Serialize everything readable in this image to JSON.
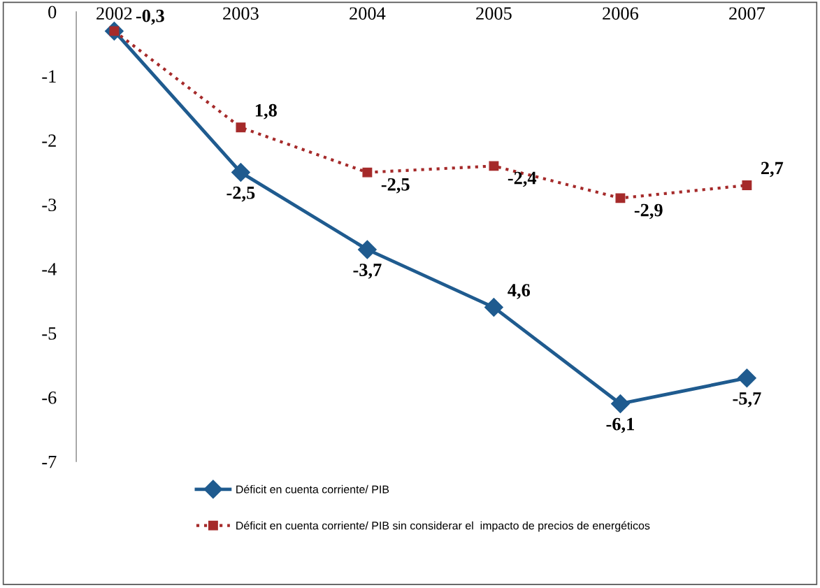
{
  "chart_data": {
    "type": "line",
    "categories": [
      "2002",
      "2003",
      "2004",
      "2005",
      "2006",
      "2007"
    ],
    "series": [
      {
        "name": "Déficit en cuenta corriente/ PIB",
        "color": "#1f5b8f",
        "marker": "diamond",
        "line_style": "solid",
        "values": [
          -0.3,
          -2.5,
          -3.7,
          -4.6,
          -6.1,
          -5.7
        ],
        "value_labels": [
          null,
          "-2,5",
          "-3,7",
          null,
          "-6,1",
          "-5,7"
        ]
      },
      {
        "name": "Déficit en cuenta corriente/ PIB sin considerar el  impacto de precios de energéticos",
        "color": "#a52a2a",
        "marker": "square",
        "line_style": "dotted",
        "values": [
          -0.3,
          -1.8,
          -2.5,
          -2.4,
          -2.9,
          -2.7
        ],
        "value_labels": [
          "-0,3",
          null,
          "-2,5",
          "-2,4",
          "-2,9",
          null
        ]
      }
    ],
    "annotations": [
      {
        "text": "4,6",
        "x": "2005",
        "y": -4.6
      },
      {
        "text": "1,8",
        "x": "2003",
        "y": -1.8
      },
      {
        "text": "2,7",
        "x": "2007",
        "y": -2.7
      }
    ],
    "ylim": [
      -7,
      0
    ],
    "yticks": [
      0,
      {
        "value": -1,
        "label": "-1"
      },
      {
        "value": -2,
        "label": "-2"
      },
      {
        "value": -3,
        "label": "-3"
      },
      {
        "value": -4,
        "label": "-4"
      },
      {
        "value": -5,
        "label": "-5"
      },
      {
        "value": -6,
        "label": "-6"
      },
      {
        "value": -7,
        "label": "-7"
      }
    ],
    "grid": false,
    "legend": "bottom"
  }
}
